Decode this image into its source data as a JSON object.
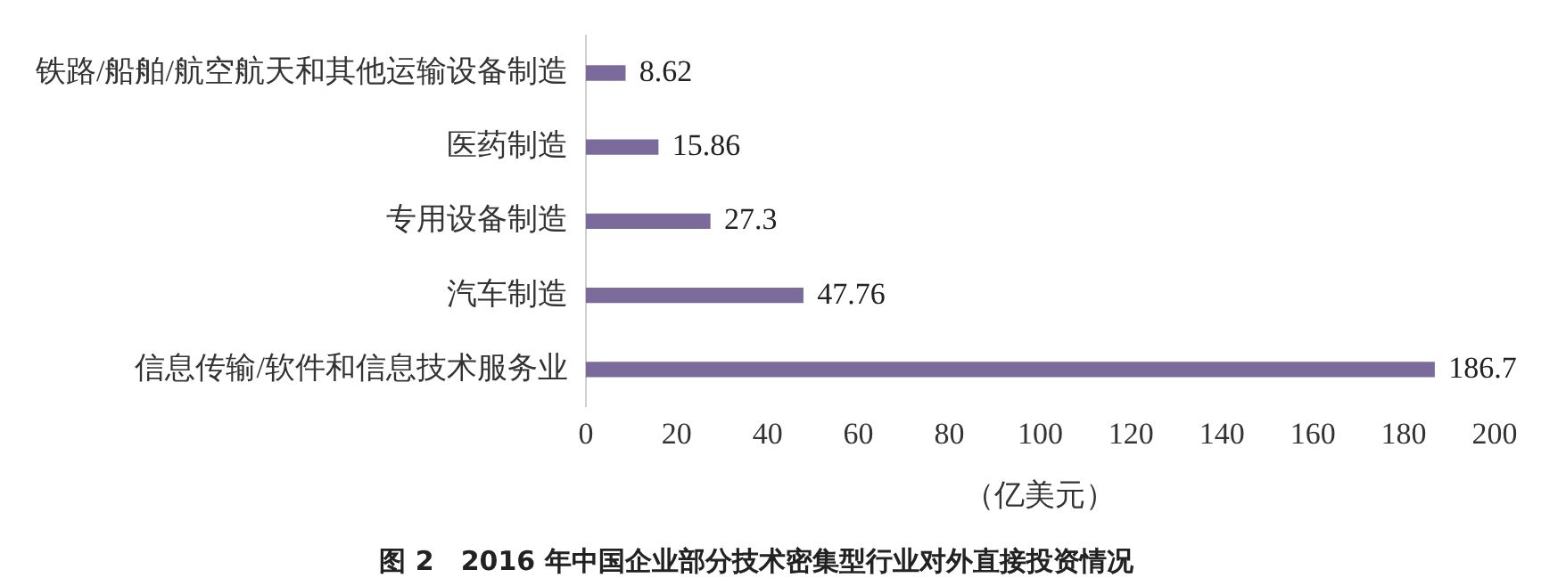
{
  "chart_data": {
    "type": "bar",
    "orientation": "horizontal",
    "title": "图 2　2016 年中国企业部分技术密集型行业对外直接投资情况",
    "xlabel": "（亿美元）",
    "categories": [
      "铁路/船舶/航空航天和其他运输设备制造",
      "医药制造",
      "专用设备制造",
      "汽车制造",
      "信息传输/软件和信息技术服务业"
    ],
    "values": [
      8.62,
      15.86,
      27.3,
      47.76,
      186.7
    ],
    "color": "#7b6a9c",
    "xlim": [
      0,
      200
    ],
    "xticks": [
      0,
      20,
      40,
      60,
      80,
      100,
      120,
      140,
      160,
      180,
      200
    ],
    "grid": false,
    "legend": false,
    "data_labels": true
  }
}
